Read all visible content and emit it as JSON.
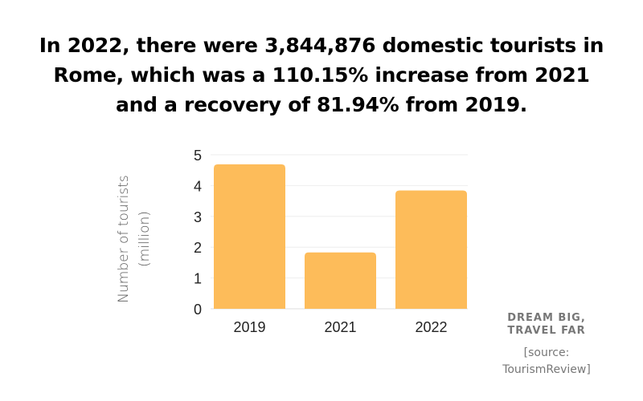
{
  "title": "In 2022, there were 3,844,876 domestic tourists in Rome, which was a 110.15% increase from 2021 and a recovery of 81.94% from 2019.",
  "brand": {
    "line1": "DREAM BIG,",
    "line2": "TRAVEL FAR"
  },
  "source": {
    "line1": "[source:",
    "line2": "TourismReview]"
  },
  "chart_data": {
    "type": "bar",
    "categories": [
      "2019",
      "2021",
      "2022"
    ],
    "values": [
      4.69,
      1.83,
      3.84
    ],
    "ylabel_line1": "Number of tourists",
    "ylabel_line2": "(million)",
    "xlabel": "",
    "ylim": [
      0,
      5
    ],
    "yticks": [
      "0",
      "1",
      "2",
      "3",
      "4",
      "5"
    ],
    "grid": true,
    "bar_color": "#FDBC5A",
    "grid_color": "#EEEEEE"
  }
}
